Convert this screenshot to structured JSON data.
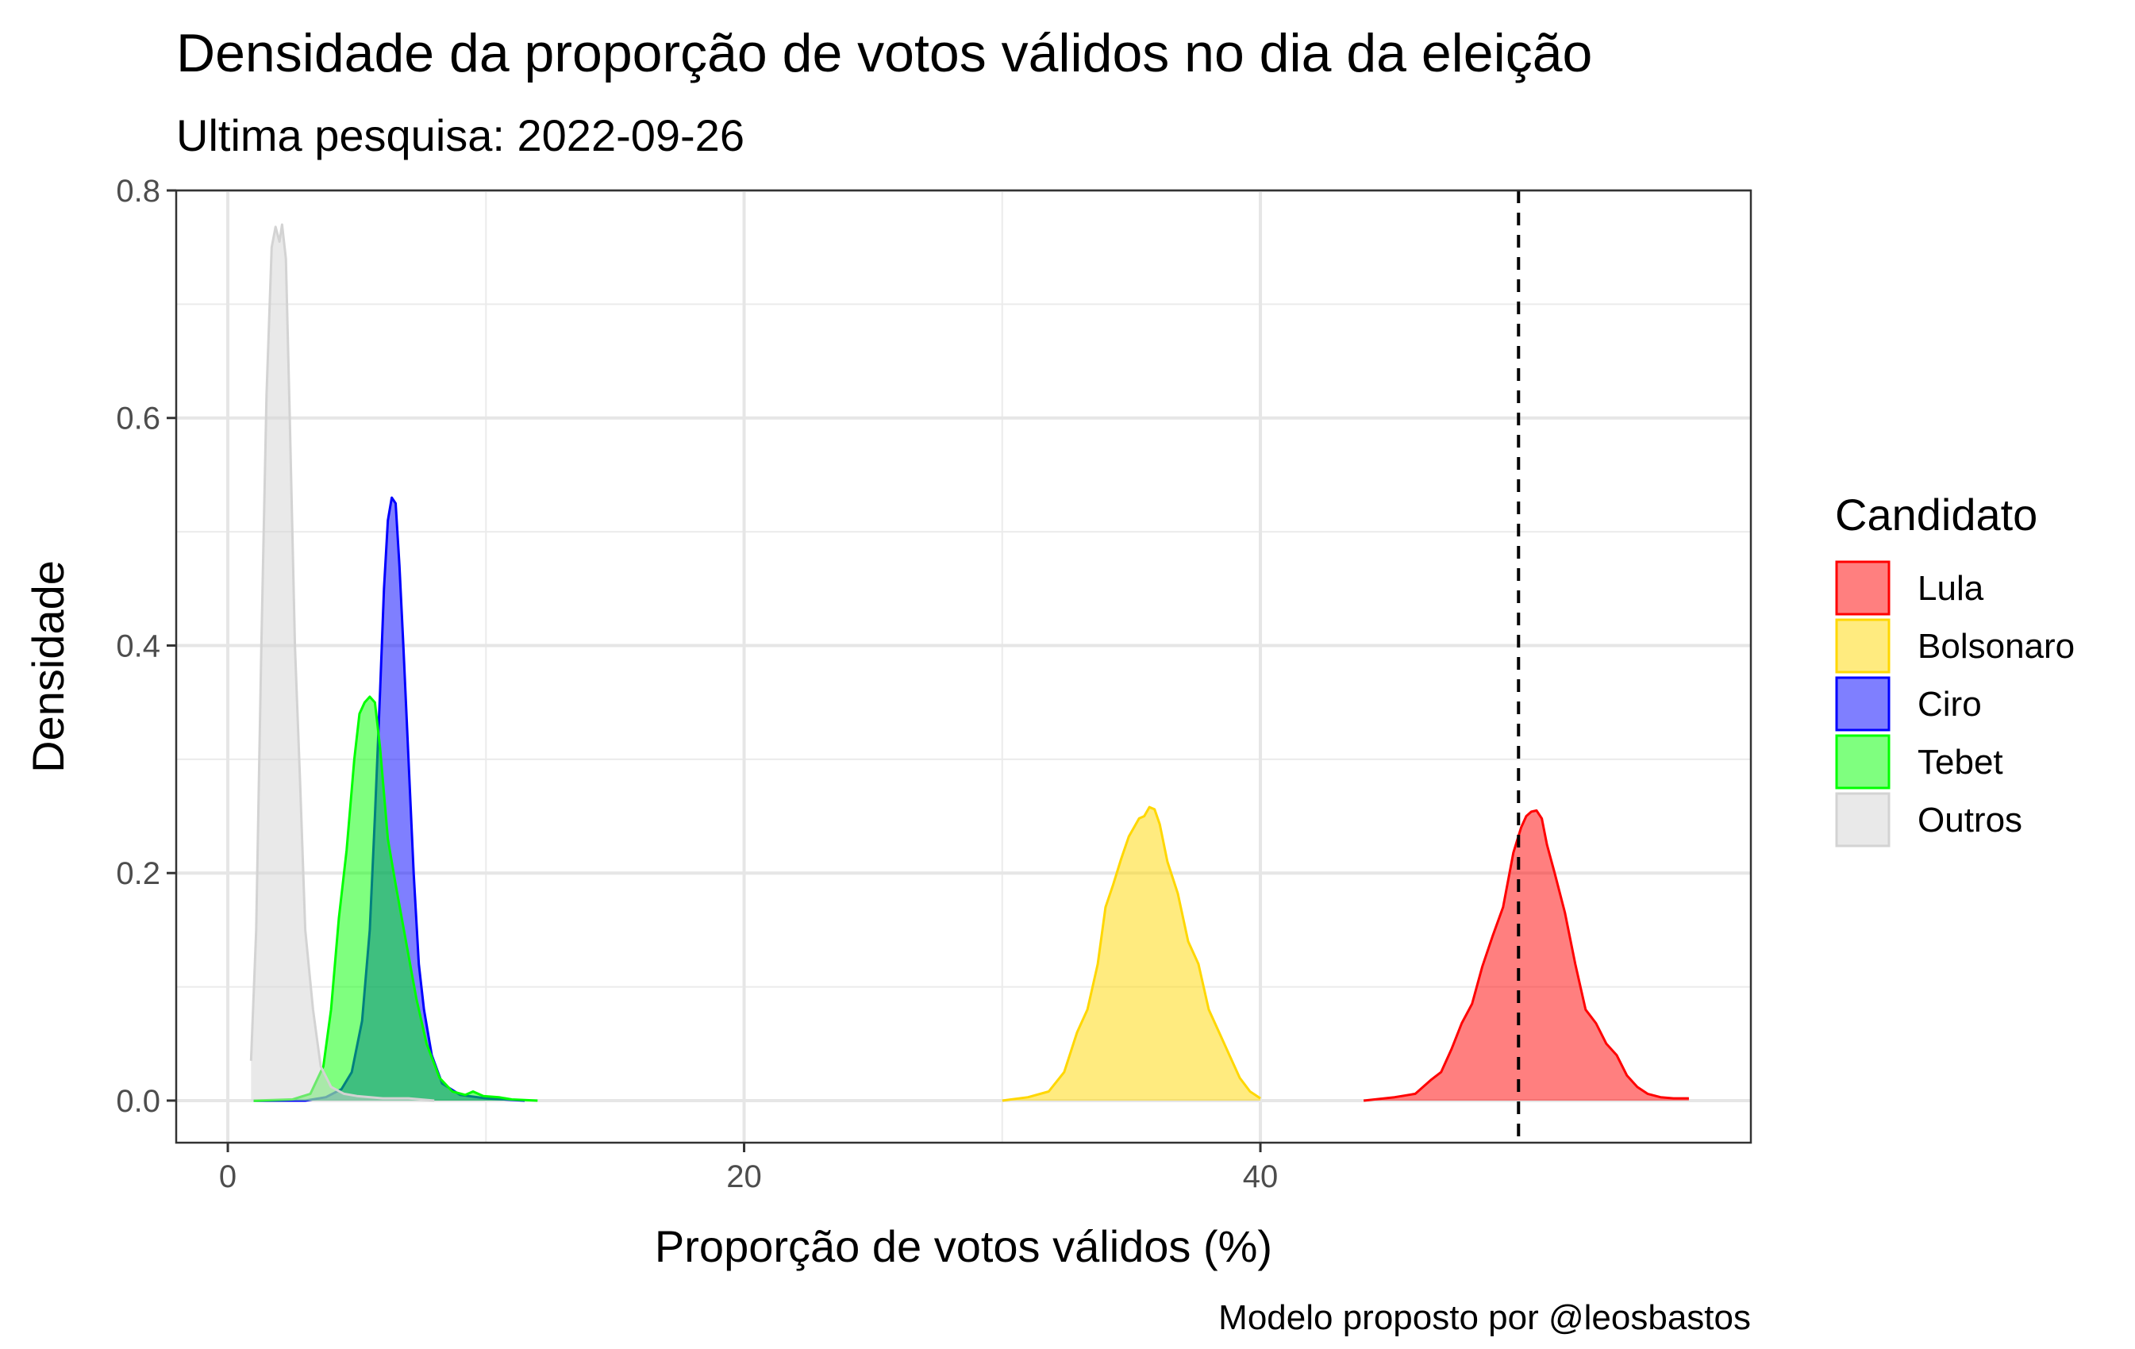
{
  "chart_data": {
    "type": "area",
    "title": "Densidade da proporção de votos válidos no dia da eleição",
    "subtitle": "Ultima pesquisa: 2022-09-26",
    "xlabel": "Proporção de votos válidos (%)",
    "ylabel": "Densidade",
    "caption": "Modelo proposto por @leosbastos",
    "xlim": [
      -2,
      59
    ],
    "ylim": [
      -0.037,
      0.8
    ],
    "x_ticks": [
      0,
      20,
      40
    ],
    "x_tick_labels": [
      "0",
      "20",
      "40"
    ],
    "y_ticks": [
      0.0,
      0.2,
      0.4,
      0.6,
      0.8
    ],
    "y_tick_labels": [
      "0.0",
      "0.2",
      "0.4",
      "0.6",
      "0.8"
    ],
    "grid": true,
    "reference_line": {
      "x": 50,
      "style": "dashed"
    },
    "legend": {
      "title": "Candidato",
      "position": "right"
    },
    "series": [
      {
        "name": "Lula",
        "color": "#FF0000",
        "x": [
          44.0,
          45.2,
          46.0,
          46.6,
          47.0,
          47.4,
          47.8,
          48.2,
          48.6,
          49.0,
          49.4,
          49.8,
          50.1,
          50.3,
          50.5,
          50.7,
          50.9,
          51.1,
          51.4,
          51.8,
          52.2,
          52.6,
          53.0,
          53.4,
          53.8,
          54.2,
          54.6,
          55.0,
          55.5,
          56.0,
          56.6
        ],
        "y": [
          0.0,
          0.003,
          0.006,
          0.018,
          0.025,
          0.045,
          0.068,
          0.085,
          0.118,
          0.145,
          0.17,
          0.218,
          0.24,
          0.25,
          0.254,
          0.255,
          0.248,
          0.225,
          0.2,
          0.165,
          0.12,
          0.08,
          0.068,
          0.05,
          0.04,
          0.022,
          0.012,
          0.006,
          0.003,
          0.002,
          0.002
        ]
      },
      {
        "name": "Bolsonaro",
        "color": "#FFD700",
        "x": [
          30.0,
          31.0,
          31.8,
          32.4,
          32.9,
          33.3,
          33.7,
          34.0,
          34.3,
          34.6,
          34.9,
          35.1,
          35.3,
          35.5,
          35.7,
          35.9,
          36.1,
          36.4,
          36.8,
          37.2,
          37.6,
          38.0,
          38.4,
          38.8,
          39.2,
          39.6,
          40.0
        ],
        "y": [
          0.0,
          0.003,
          0.008,
          0.025,
          0.06,
          0.08,
          0.12,
          0.17,
          0.19,
          0.212,
          0.232,
          0.24,
          0.248,
          0.25,
          0.258,
          0.256,
          0.243,
          0.21,
          0.182,
          0.14,
          0.12,
          0.08,
          0.06,
          0.04,
          0.02,
          0.008,
          0.002
        ]
      },
      {
        "name": "Ciro",
        "color": "#0000FF",
        "x": [
          1.0,
          3.0,
          3.8,
          4.4,
          4.8,
          5.2,
          5.5,
          5.7,
          5.9,
          6.05,
          6.2,
          6.35,
          6.5,
          6.65,
          6.8,
          7.0,
          7.2,
          7.4,
          7.6,
          7.9,
          8.3,
          9.0,
          10.0,
          11.5
        ],
        "y": [
          0.0,
          0.0,
          0.003,
          0.01,
          0.025,
          0.07,
          0.15,
          0.25,
          0.36,
          0.45,
          0.51,
          0.53,
          0.525,
          0.47,
          0.4,
          0.3,
          0.2,
          0.12,
          0.08,
          0.04,
          0.015,
          0.005,
          0.002,
          0.0
        ]
      },
      {
        "name": "Tebet",
        "color": "#00FF00",
        "x": [
          1.0,
          2.5,
          3.2,
          3.7,
          4.0,
          4.3,
          4.6,
          4.9,
          5.1,
          5.3,
          5.5,
          5.7,
          5.9,
          6.2,
          6.5,
          6.9,
          7.3,
          7.7,
          8.2,
          8.7,
          9.2,
          9.5,
          9.9,
          10.5,
          11.0,
          12.0
        ],
        "y": [
          0.0,
          0.001,
          0.006,
          0.03,
          0.08,
          0.16,
          0.22,
          0.3,
          0.34,
          0.35,
          0.355,
          0.35,
          0.31,
          0.23,
          0.19,
          0.14,
          0.09,
          0.05,
          0.02,
          0.008,
          0.005,
          0.008,
          0.004,
          0.003,
          0.001,
          0.0
        ]
      },
      {
        "name": "Outros",
        "color": "#D3D3D3",
        "x": [
          0.9,
          1.1,
          1.3,
          1.5,
          1.7,
          1.85,
          2.0,
          2.1,
          2.25,
          2.4,
          2.6,
          2.8,
          3.0,
          3.3,
          3.6,
          4.0,
          4.5,
          5.0,
          6.0,
          7.0,
          8.0
        ],
        "y": [
          0.035,
          0.15,
          0.4,
          0.62,
          0.75,
          0.768,
          0.755,
          0.77,
          0.74,
          0.6,
          0.4,
          0.28,
          0.15,
          0.08,
          0.03,
          0.012,
          0.006,
          0.004,
          0.002,
          0.002,
          0.0
        ]
      }
    ]
  }
}
